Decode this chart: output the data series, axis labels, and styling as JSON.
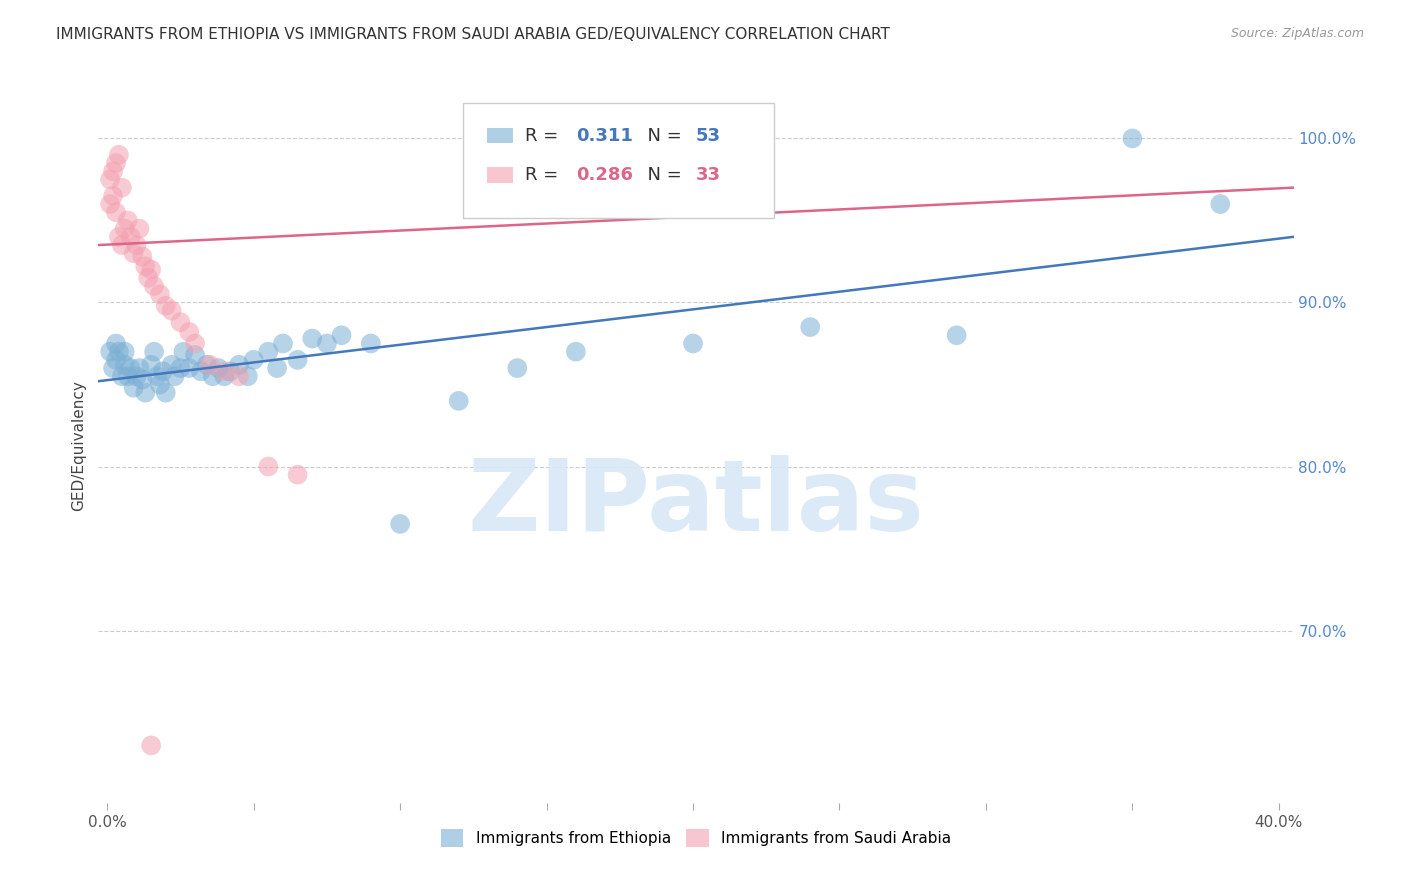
{
  "title": "IMMIGRANTS FROM ETHIOPIA VS IMMIGRANTS FROM SAUDI ARABIA GED/EQUIVALENCY CORRELATION CHART",
  "source": "Source: ZipAtlas.com",
  "ylabel": "GED/Equivalency",
  "xlim": [
    -0.003,
    0.405
  ],
  "ylim": [
    0.595,
    1.03
  ],
  "watermark_text": "ZIPatlas",
  "legend_ethiopia_r": "0.311",
  "legend_ethiopia_n": "53",
  "legend_saudi_r": "0.286",
  "legend_saudi_n": "33",
  "ethiopia_color": "#7BAFD4",
  "saudi_color": "#F4A0B0",
  "ethiopia_line_color": "#4477BB",
  "saudi_line_color": "#DD6688",
  "ethiopia_scatter_x": [
    0.001,
    0.002,
    0.003,
    0.003,
    0.004,
    0.005,
    0.006,
    0.006,
    0.007,
    0.008,
    0.009,
    0.01,
    0.011,
    0.012,
    0.013,
    0.015,
    0.016,
    0.017,
    0.018,
    0.019,
    0.02,
    0.022,
    0.023,
    0.025,
    0.026,
    0.028,
    0.03,
    0.032,
    0.034,
    0.036,
    0.038,
    0.04,
    0.042,
    0.045,
    0.048,
    0.05,
    0.055,
    0.058,
    0.06,
    0.065,
    0.07,
    0.075,
    0.08,
    0.09,
    0.1,
    0.12,
    0.14,
    0.16,
    0.2,
    0.24,
    0.29,
    0.35,
    0.38
  ],
  "ethiopia_scatter_y": [
    0.87,
    0.86,
    0.865,
    0.875,
    0.87,
    0.855,
    0.862,
    0.87,
    0.855,
    0.86,
    0.848,
    0.855,
    0.86,
    0.853,
    0.845,
    0.862,
    0.87,
    0.855,
    0.85,
    0.858,
    0.845,
    0.862,
    0.855,
    0.86,
    0.87,
    0.86,
    0.868,
    0.858,
    0.862,
    0.855,
    0.86,
    0.855,
    0.858,
    0.862,
    0.855,
    0.865,
    0.87,
    0.86,
    0.875,
    0.865,
    0.878,
    0.875,
    0.88,
    0.875,
    0.765,
    0.84,
    0.86,
    0.87,
    0.875,
    0.885,
    0.88,
    1.0,
    0.96
  ],
  "saudi_scatter_x": [
    0.001,
    0.001,
    0.002,
    0.002,
    0.003,
    0.003,
    0.004,
    0.004,
    0.005,
    0.005,
    0.006,
    0.007,
    0.008,
    0.009,
    0.01,
    0.011,
    0.012,
    0.013,
    0.014,
    0.015,
    0.016,
    0.018,
    0.02,
    0.022,
    0.025,
    0.028,
    0.03,
    0.035,
    0.04,
    0.045,
    0.055,
    0.065,
    0.015
  ],
  "saudi_scatter_y": [
    0.96,
    0.975,
    0.965,
    0.98,
    0.955,
    0.985,
    0.94,
    0.99,
    0.935,
    0.97,
    0.945,
    0.95,
    0.94,
    0.93,
    0.935,
    0.945,
    0.928,
    0.922,
    0.915,
    0.92,
    0.91,
    0.905,
    0.898,
    0.895,
    0.888,
    0.882,
    0.875,
    0.862,
    0.858,
    0.855,
    0.8,
    0.795,
    0.63
  ],
  "ethiopia_trend_x": [
    -0.003,
    0.405
  ],
  "ethiopia_trend_y": [
    0.852,
    0.94
  ],
  "saudi_trend_x": [
    -0.003,
    0.405
  ],
  "saudi_trend_y": [
    0.935,
    0.97
  ],
  "grid_color": "#CCCCCC",
  "background_color": "#FFFFFF",
  "title_fontsize": 11,
  "axis_label_fontsize": 11,
  "tick_fontsize": 11,
  "legend_fontsize": 13,
  "yticks": [
    0.6,
    0.7,
    0.8,
    0.9,
    1.0
  ],
  "ytick_labels_right": [
    "",
    "70.0%",
    "80.0%",
    "90.0%",
    "100.0%"
  ],
  "xticks": [
    0.0,
    0.05,
    0.1,
    0.15,
    0.2,
    0.25,
    0.3,
    0.35,
    0.4
  ],
  "xtick_labels": [
    "0.0%",
    "",
    "",
    "",
    "",
    "",
    "",
    "",
    "40.0%"
  ]
}
